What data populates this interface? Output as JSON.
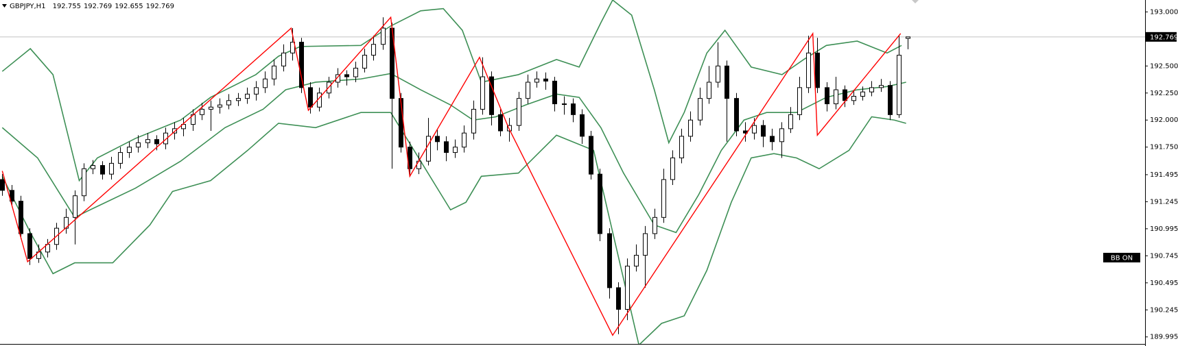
{
  "chart_data": {
    "type": "candlestick",
    "title": "GBPJPY,H1",
    "header_ohlc": [
      192.755,
      192.769,
      192.655,
      192.769
    ],
    "candles": {
      "open": [
        191.45,
        191.35,
        191.25,
        190.95,
        190.72,
        190.78,
        190.85,
        191.0,
        191.1,
        191.3,
        191.55,
        191.58,
        191.5,
        191.6,
        191.7,
        191.75,
        191.79,
        191.82,
        191.78,
        191.88,
        191.92,
        191.96,
        192.05,
        192.1,
        192.12,
        192.14,
        192.18,
        192.2,
        192.24,
        192.3,
        192.38,
        192.5,
        192.62,
        192.72,
        192.3,
        192.12,
        192.25,
        192.35,
        192.42,
        192.4,
        192.48,
        192.6,
        192.7,
        192.85,
        192.2,
        191.75,
        191.55,
        191.62,
        191.85,
        191.8,
        191.7,
        191.75,
        191.88,
        192.1,
        192.4,
        192.05,
        191.9,
        191.95,
        192.2,
        192.35,
        192.38,
        192.36,
        192.15,
        192.15,
        192.05,
        191.85,
        191.5,
        190.95,
        190.45,
        190.25,
        190.65,
        190.75,
        190.95,
        191.1,
        191.45,
        191.65,
        191.85,
        192.0,
        192.2,
        192.35,
        192.5,
        192.2,
        191.9,
        191.88,
        191.95,
        191.85,
        191.8,
        191.92,
        192.05,
        192.3,
        192.62,
        192.3,
        192.15,
        192.28,
        192.18,
        192.22,
        192.26,
        192.3,
        192.32,
        192.05,
        192.755
      ],
      "high": [
        191.5,
        191.4,
        191.3,
        191.0,
        190.85,
        190.9,
        191.05,
        191.18,
        191.35,
        191.6,
        191.63,
        191.62,
        191.66,
        191.75,
        191.8,
        191.86,
        191.88,
        191.86,
        191.93,
        191.98,
        192.02,
        192.1,
        192.16,
        192.18,
        192.2,
        192.24,
        192.25,
        192.3,
        192.36,
        192.45,
        192.56,
        192.7,
        192.85,
        192.76,
        192.35,
        192.3,
        192.4,
        192.48,
        192.46,
        192.54,
        192.66,
        192.78,
        192.95,
        192.9,
        192.25,
        191.8,
        191.7,
        192.02,
        191.92,
        191.85,
        191.82,
        191.95,
        192.18,
        192.58,
        192.45,
        192.1,
        192.02,
        192.26,
        192.42,
        192.45,
        192.44,
        192.4,
        192.22,
        192.2,
        192.1,
        191.9,
        191.55,
        191.0,
        190.5,
        190.72,
        190.85,
        191.02,
        191.18,
        191.55,
        191.72,
        191.92,
        192.08,
        192.3,
        192.5,
        192.72,
        192.55,
        192.25,
        191.98,
        192.02,
        192.0,
        191.92,
        191.98,
        192.12,
        192.4,
        192.78,
        192.76,
        192.35,
        192.4,
        192.32,
        192.28,
        192.31,
        192.36,
        192.38,
        192.36,
        192.78,
        192.769
      ],
      "low": [
        191.3,
        191.2,
        190.9,
        190.66,
        190.68,
        190.73,
        190.8,
        190.95,
        190.85,
        191.25,
        191.5,
        191.45,
        191.45,
        191.55,
        191.65,
        191.7,
        191.74,
        191.72,
        191.73,
        191.82,
        191.85,
        191.9,
        192.0,
        191.9,
        192.06,
        192.1,
        192.13,
        192.15,
        192.18,
        192.25,
        192.32,
        192.45,
        192.55,
        192.25,
        192.06,
        192.08,
        192.2,
        192.3,
        192.32,
        192.35,
        192.44,
        192.55,
        192.65,
        191.55,
        191.7,
        191.48,
        191.5,
        191.58,
        191.72,
        191.62,
        191.65,
        191.7,
        191.82,
        192.05,
        191.95,
        191.85,
        191.8,
        191.9,
        192.15,
        192.3,
        192.28,
        192.08,
        192.05,
        191.98,
        191.78,
        191.45,
        190.88,
        190.35,
        190.02,
        190.15,
        190.6,
        190.45,
        190.9,
        191.05,
        191.4,
        191.6,
        191.8,
        191.95,
        192.15,
        192.3,
        191.8,
        191.85,
        191.8,
        191.82,
        191.75,
        191.72,
        191.65,
        191.88,
        192.0,
        192.25,
        192.25,
        192.08,
        192.1,
        192.12,
        192.14,
        192.18,
        192.22,
        192.26,
        192.0,
        192.02,
        192.655
      ],
      "close": [
        191.35,
        191.25,
        190.95,
        190.72,
        190.78,
        190.85,
        191.0,
        191.1,
        191.3,
        191.55,
        191.58,
        191.5,
        191.6,
        191.7,
        191.75,
        191.79,
        191.82,
        191.78,
        191.88,
        191.92,
        191.96,
        192.05,
        192.1,
        192.12,
        192.14,
        192.18,
        192.2,
        192.24,
        192.3,
        192.38,
        192.5,
        192.62,
        192.72,
        192.3,
        192.12,
        192.25,
        192.35,
        192.42,
        192.4,
        192.48,
        192.6,
        192.7,
        192.85,
        192.2,
        191.75,
        191.55,
        191.62,
        191.85,
        191.8,
        191.7,
        191.75,
        191.88,
        192.1,
        192.4,
        192.05,
        191.9,
        191.95,
        192.2,
        192.35,
        192.38,
        192.36,
        192.15,
        192.15,
        192.05,
        191.85,
        191.5,
        190.95,
        190.45,
        190.25,
        190.65,
        190.75,
        190.95,
        191.1,
        191.45,
        191.65,
        191.85,
        192.0,
        192.2,
        192.35,
        192.5,
        192.2,
        191.9,
        191.88,
        191.95,
        191.85,
        191.8,
        191.92,
        192.05,
        192.3,
        192.62,
        192.3,
        192.15,
        192.28,
        192.18,
        192.22,
        192.26,
        192.3,
        192.32,
        192.05,
        192.6,
        192.769
      ]
    },
    "up_color": "#ffffff",
    "down_color": "#000000",
    "bands": [
      {
        "color": "#3d8f55",
        "x": [
          0,
          3.1,
          5.6,
          8.5,
          10.5,
          14.7,
          19.7,
          23.0,
          28.0,
          30.5,
          32.9,
          39.6,
          42.9,
          46.2,
          48.7,
          50.8,
          52.9,
          57.0,
          61.2,
          63.7,
          66.1,
          67.4,
          69.5,
          72.0,
          73.6,
          75.3,
          77.8,
          79.8,
          82.7,
          86.1,
          88.5,
          91.0,
          94.4,
          97.7,
          99.3
        ],
        "values": [
          192.45,
          192.66,
          192.42,
          191.44,
          191.65,
          191.83,
          192.0,
          192.21,
          192.42,
          192.59,
          192.68,
          192.69,
          192.87,
          193.01,
          193.03,
          192.83,
          192.35,
          192.42,
          192.56,
          192.49,
          192.9,
          193.11,
          192.97,
          192.28,
          191.79,
          192.07,
          192.62,
          192.83,
          192.49,
          192.42,
          192.56,
          192.69,
          192.73,
          192.62,
          192.69
        ]
      },
      {
        "color": "#3d8f55",
        "x": [
          0,
          3.9,
          8.0,
          9.7,
          14.7,
          19.7,
          24.6,
          28.8,
          31.3,
          34.6,
          39.6,
          42.9,
          46.2,
          49.5,
          52.0,
          54.5,
          57.8,
          61.2,
          63.7,
          66.1,
          68.6,
          72.0,
          74.4,
          76.9,
          79.4,
          81.9,
          84.4,
          87.7,
          91.0,
          94.4,
          97.7,
          99.8
        ],
        "values": [
          191.93,
          191.65,
          191.1,
          191.17,
          191.37,
          191.62,
          191.93,
          192.1,
          192.28,
          192.35,
          192.38,
          192.43,
          192.28,
          192.14,
          192.0,
          192.03,
          192.14,
          192.24,
          192.21,
          191.93,
          191.51,
          191.03,
          190.96,
          191.31,
          191.72,
          192.0,
          192.07,
          192.07,
          192.21,
          192.28,
          192.31,
          192.35
        ]
      },
      {
        "color": "#3d8f55",
        "x": [
          0,
          3.1,
          5.6,
          8.0,
          12.2,
          16.3,
          18.8,
          23.0,
          27.1,
          30.5,
          34.6,
          39.6,
          42.9,
          46.2,
          49.5,
          51.2,
          52.9,
          57.0,
          61.2,
          65.3,
          67.8,
          70.3,
          72.8,
          75.3,
          77.8,
          80.5,
          82.7,
          85.2,
          87.7,
          90.2,
          93.5,
          96.0,
          98.5,
          99.8
        ],
        "values": [
          191.48,
          190.96,
          190.58,
          190.68,
          190.68,
          191.03,
          191.34,
          191.44,
          191.72,
          191.97,
          191.93,
          192.07,
          192.07,
          191.62,
          191.17,
          191.24,
          191.48,
          191.51,
          191.86,
          191.72,
          190.82,
          189.92,
          190.12,
          190.19,
          190.61,
          191.24,
          191.65,
          191.69,
          191.65,
          191.55,
          191.72,
          192.03,
          192.0,
          191.97
        ]
      }
    ],
    "zigzag": {
      "color": "#ff0000",
      "x": [
        0,
        2.8,
        31.9,
        33.8,
        42.9,
        45.0,
        52.7,
        55.9,
        67.4,
        89.5,
        90.0,
        99.2
      ],
      "values": [
        191.53,
        190.69,
        192.85,
        192.09,
        192.95,
        191.48,
        192.58,
        191.93,
        190.01,
        192.8,
        191.86,
        192.8
      ]
    },
    "current_price": 192.769,
    "indicator_label": "BB ON",
    "ylim": [
      189.93,
      193.11
    ],
    "yticks": [
      {
        "value": 193,
        "label": "193.000"
      },
      {
        "value": 192.5,
        "label": "192.500"
      },
      {
        "value": 192.25,
        "label": "192.250"
      },
      {
        "value": 192,
        "label": "192.000"
      },
      {
        "value": 191.75,
        "label": "191.750"
      },
      191.495,
      191.245,
      190.995,
      190.745,
      190.495,
      190.245,
      189.995
    ],
    "grid": false
  }
}
